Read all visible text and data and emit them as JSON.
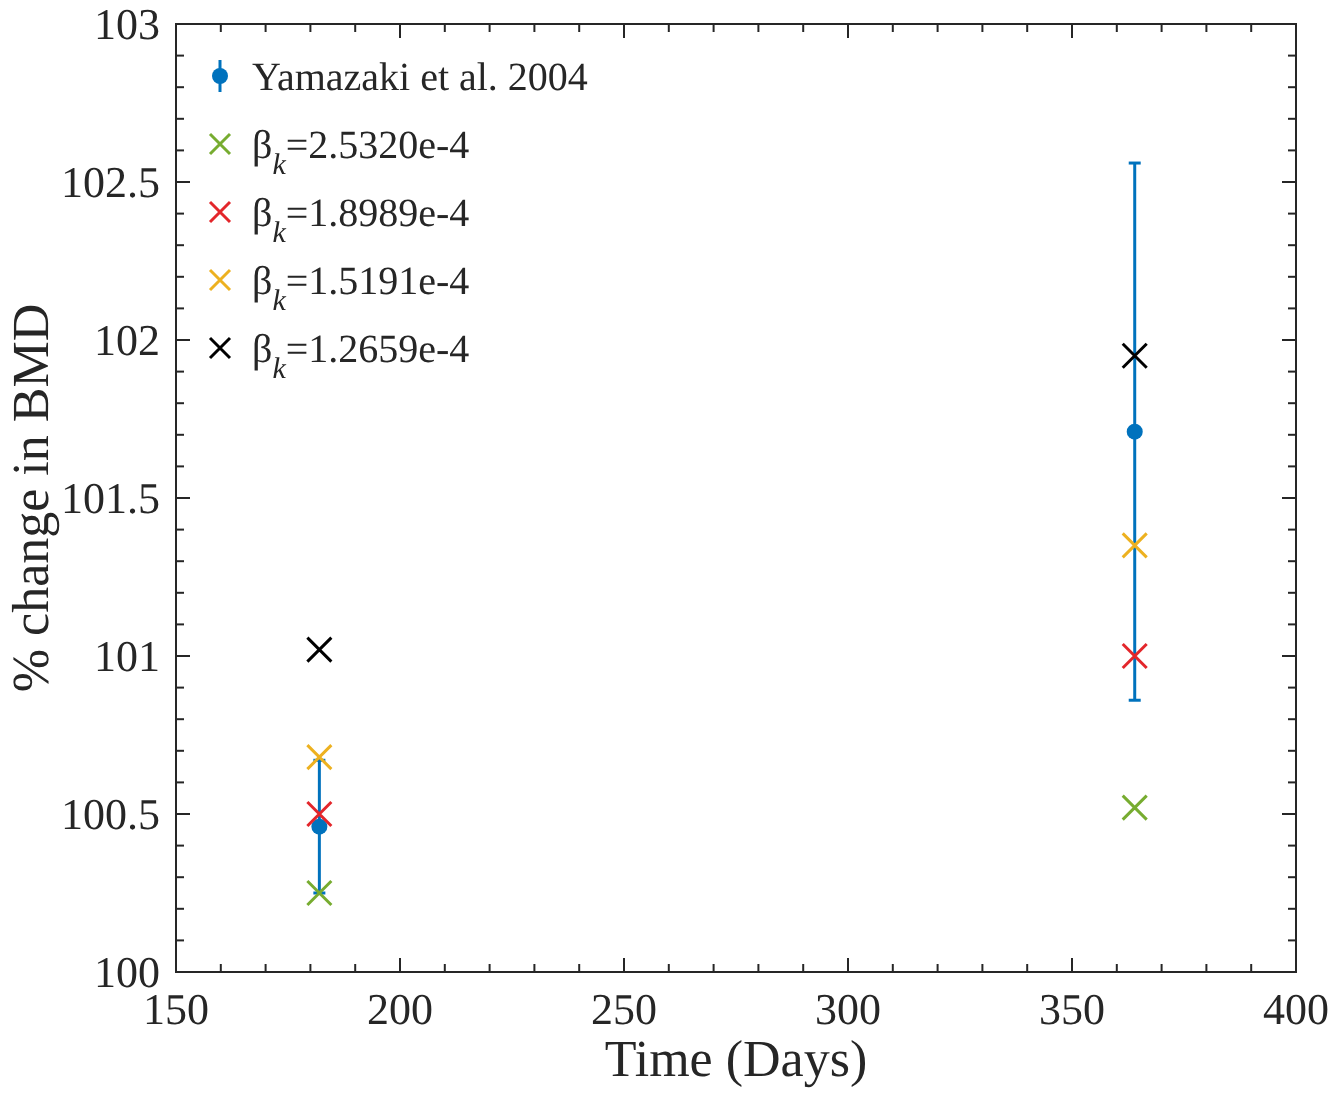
{
  "chart_data": {
    "type": "scatter",
    "xlabel": "Time (Days)",
    "ylabel": "% change in BMD",
    "xlim": [
      150,
      400
    ],
    "xticks": [
      150,
      200,
      250,
      300,
      350,
      400
    ],
    "ylim": [
      100,
      103
    ],
    "yticks": [
      100,
      100.5,
      101,
      101.5,
      102,
      102.5,
      103
    ],
    "grid": false,
    "legend": "top left",
    "x": [
      182,
      364
    ],
    "series": [
      {
        "name": "Yamazaki et al. 2004",
        "color": "#0072bd",
        "marker": "circle",
        "values": [
          100.46,
          101.71
        ],
        "errors": [
          0.21,
          0.85
        ]
      },
      {
        "name": "β$_{k}$=2.5320e-4",
        "color": "#77ac30",
        "marker": "cross",
        "values": [
          100.25,
          100.52
        ]
      },
      {
        "name": "β$_{k}$=1.8989e-4",
        "color": "#e3262b",
        "marker": "cross",
        "values": [
          100.5,
          101.0
        ]
      },
      {
        "name": "β$_{k}$=1.5191e-4",
        "color": "#edb120",
        "marker": "cross",
        "values": [
          100.68,
          101.35
        ]
      },
      {
        "name": "β$_{k}$=1.2659e-4",
        "color": "#000000",
        "marker": "cross",
        "values": [
          101.02,
          101.95
        ]
      }
    ]
  }
}
